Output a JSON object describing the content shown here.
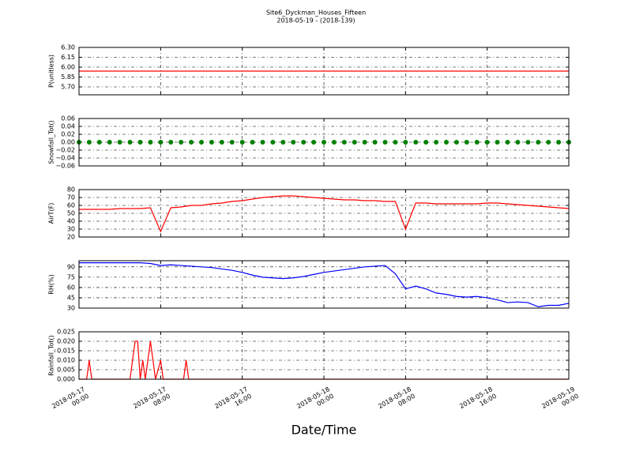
{
  "figure": {
    "title": "Site6_Dyckman_Houses_Fifteen",
    "subtitle": "2018-05-19 - (2018-139)",
    "xlabel": "Date/Time"
  },
  "chart_data": [
    {
      "type": "line",
      "ylabel": "P(unitless)",
      "color": "#ff0000",
      "x": [
        "2018-05-17 00:00",
        "2018-05-19 00:00"
      ],
      "values": [
        5.94,
        5.94
      ],
      "ylim": [
        5.58,
        6.3
      ],
      "yticks": [
        {
          "value": 5.7,
          "label": "5.70"
        },
        {
          "value": 5.85,
          "label": "5.85"
        },
        {
          "value": 6.0,
          "label": "6.00"
        },
        {
          "value": 6.15,
          "label": "6.15"
        },
        {
          "value": 6.3,
          "label": "6.30"
        }
      ],
      "grid": true
    },
    {
      "type": "scatter",
      "ylabel": "Snowfall_Tot()",
      "color": "#008000",
      "x": [
        "2018-05-17 00:00",
        "2018-05-17 01:00",
        "2018-05-17 02:00",
        "2018-05-17 03:00",
        "2018-05-17 04:00",
        "2018-05-17 05:00",
        "2018-05-17 06:00",
        "2018-05-17 07:00",
        "2018-05-17 08:00",
        "2018-05-17 09:00",
        "2018-05-17 10:00",
        "2018-05-17 11:00",
        "2018-05-17 12:00",
        "2018-05-17 13:00",
        "2018-05-17 14:00",
        "2018-05-17 15:00",
        "2018-05-17 16:00",
        "2018-05-17 17:00",
        "2018-05-17 18:00",
        "2018-05-17 19:00",
        "2018-05-17 20:00",
        "2018-05-17 21:00",
        "2018-05-17 22:00",
        "2018-05-17 23:00",
        "2018-05-18 00:00",
        "2018-05-18 01:00",
        "2018-05-18 02:00",
        "2018-05-18 03:00",
        "2018-05-18 04:00",
        "2018-05-18 05:00",
        "2018-05-18 06:00",
        "2018-05-18 07:00",
        "2018-05-18 08:00",
        "2018-05-18 09:00",
        "2018-05-18 10:00",
        "2018-05-18 11:00",
        "2018-05-18 12:00",
        "2018-05-18 13:00",
        "2018-05-18 14:00",
        "2018-05-18 15:00",
        "2018-05-18 16:00",
        "2018-05-18 17:00",
        "2018-05-18 18:00",
        "2018-05-18 19:00",
        "2018-05-18 20:00",
        "2018-05-18 21:00",
        "2018-05-18 22:00",
        "2018-05-18 23:00",
        "2018-05-19 00:00"
      ],
      "values": [
        0,
        0,
        0,
        0,
        0,
        0,
        0,
        0,
        0,
        0,
        0,
        0,
        0,
        0,
        0,
        0,
        0,
        0,
        0,
        0,
        0,
        0,
        0,
        0,
        0,
        0,
        0,
        0,
        0,
        0,
        0,
        0,
        0,
        0,
        0,
        0,
        0,
        0,
        0,
        0,
        0,
        0,
        0,
        0,
        0,
        0,
        0,
        0,
        0
      ],
      "ylim": [
        -0.06,
        0.06
      ],
      "yticks": [
        {
          "value": -0.06,
          "label": "−0.06"
        },
        {
          "value": -0.04,
          "label": "−0.04"
        },
        {
          "value": -0.02,
          "label": "−0.02"
        },
        {
          "value": 0,
          "label": "0.00"
        },
        {
          "value": 0.02,
          "label": "0.02"
        },
        {
          "value": 0.04,
          "label": "0.04"
        },
        {
          "value": 0.06,
          "label": "0.06"
        }
      ],
      "grid": true
    },
    {
      "type": "line",
      "ylabel": "AirT(F)",
      "color": "#ff0000",
      "x": [
        "2018-05-17 00:00",
        "2018-05-17 01:00",
        "2018-05-17 02:00",
        "2018-05-17 03:00",
        "2018-05-17 04:00",
        "2018-05-17 05:00",
        "2018-05-17 06:00",
        "2018-05-17 07:00",
        "2018-05-17 08:00",
        "2018-05-17 09:00",
        "2018-05-17 10:00",
        "2018-05-17 11:00",
        "2018-05-17 12:00",
        "2018-05-17 13:00",
        "2018-05-17 14:00",
        "2018-05-17 15:00",
        "2018-05-17 16:00",
        "2018-05-17 17:00",
        "2018-05-17 18:00",
        "2018-05-17 19:00",
        "2018-05-17 20:00",
        "2018-05-17 21:00",
        "2018-05-17 22:00",
        "2018-05-17 23:00",
        "2018-05-18 00:00",
        "2018-05-18 01:00",
        "2018-05-18 02:00",
        "2018-05-18 03:00",
        "2018-05-18 04:00",
        "2018-05-18 05:00",
        "2018-05-18 06:00",
        "2018-05-18 07:00",
        "2018-05-18 08:00",
        "2018-05-18 09:00",
        "2018-05-18 10:00",
        "2018-05-18 11:00",
        "2018-05-18 12:00",
        "2018-05-18 13:00",
        "2018-05-18 14:00",
        "2018-05-18 15:00",
        "2018-05-18 16:00",
        "2018-05-18 17:00",
        "2018-05-18 18:00",
        "2018-05-18 19:00",
        "2018-05-18 20:00",
        "2018-05-18 21:00",
        "2018-05-18 22:00",
        "2018-05-18 23:00",
        "2018-05-19 00:00"
      ],
      "values": [
        55,
        55,
        55,
        55,
        56,
        56,
        56,
        57,
        27,
        57,
        58,
        60,
        60,
        62,
        63,
        65,
        66,
        68,
        70,
        71,
        72,
        72,
        71,
        70,
        69,
        68,
        67,
        67,
        66,
        66,
        65,
        65,
        30,
        63,
        63,
        62,
        62,
        62,
        62,
        62,
        63,
        63,
        62,
        61,
        60,
        59,
        58,
        57,
        56
      ],
      "ylim": [
        20,
        80
      ],
      "yticks": [
        20,
        30,
        40,
        50,
        60,
        70,
        80
      ],
      "grid": true
    },
    {
      "type": "line",
      "ylabel": "RH(%)",
      "color": "#0000ff",
      "x": [
        "2018-05-17 00:00",
        "2018-05-17 01:00",
        "2018-05-17 02:00",
        "2018-05-17 03:00",
        "2018-05-17 04:00",
        "2018-05-17 05:00",
        "2018-05-17 06:00",
        "2018-05-17 07:00",
        "2018-05-17 08:00",
        "2018-05-17 09:00",
        "2018-05-17 10:00",
        "2018-05-17 11:00",
        "2018-05-17 12:00",
        "2018-05-17 13:00",
        "2018-05-17 14:00",
        "2018-05-17 15:00",
        "2018-05-17 16:00",
        "2018-05-17 17:00",
        "2018-05-17 18:00",
        "2018-05-17 19:00",
        "2018-05-17 20:00",
        "2018-05-17 21:00",
        "2018-05-17 22:00",
        "2018-05-17 23:00",
        "2018-05-18 00:00",
        "2018-05-18 01:00",
        "2018-05-18 02:00",
        "2018-05-18 03:00",
        "2018-05-18 04:00",
        "2018-05-18 05:00",
        "2018-05-18 06:00",
        "2018-05-18 07:00",
        "2018-05-18 08:00",
        "2018-05-18 09:00",
        "2018-05-18 10:00",
        "2018-05-18 11:00",
        "2018-05-18 12:00",
        "2018-05-18 13:00",
        "2018-05-18 14:00",
        "2018-05-18 15:00",
        "2018-05-18 16:00",
        "2018-05-18 17:00",
        "2018-05-18 18:00",
        "2018-05-18 19:00",
        "2018-05-18 20:00",
        "2018-05-18 21:00",
        "2018-05-18 22:00",
        "2018-05-18 23:00",
        "2018-05-19 00:00"
      ],
      "values": [
        96,
        96,
        96,
        96,
        96,
        96,
        96,
        95,
        92,
        93,
        92,
        91,
        90,
        89,
        87,
        85,
        82,
        78,
        75,
        74,
        73,
        74,
        76,
        79,
        82,
        84,
        86,
        88,
        90,
        91,
        92,
        80,
        58,
        62,
        58,
        52,
        50,
        47,
        46,
        47,
        45,
        42,
        38,
        39,
        38,
        32,
        34,
        34,
        37
      ],
      "ylim": [
        30,
        99
      ],
      "yticks": [
        30,
        45,
        60,
        75,
        90
      ],
      "grid": true
    },
    {
      "type": "line",
      "ylabel": "Rainfall_Tot()",
      "color": "#ff0000",
      "x": [
        "2018-05-17 00:00",
        "2018-05-17 00:45",
        "2018-05-17 01:00",
        "2018-05-17 01:15",
        "2018-05-17 05:00",
        "2018-05-17 05:30",
        "2018-05-17 05:45",
        "2018-05-17 06:00",
        "2018-05-17 06:15",
        "2018-05-17 06:30",
        "2018-05-17 07:00",
        "2018-05-17 07:30",
        "2018-05-17 08:00",
        "2018-05-17 08:15",
        "2018-05-17 10:15",
        "2018-05-17 10:30",
        "2018-05-17 10:45",
        "2018-05-19 00:00"
      ],
      "values": [
        0,
        0,
        0.01,
        0,
        0,
        0.02,
        0.02,
        0,
        0.01,
        0,
        0.02,
        0,
        0.01,
        0,
        0,
        0.01,
        0,
        0
      ],
      "xlim": [
        "2018-05-17 00:00",
        "2018-05-19 00:00"
      ],
      "xticks": [
        {
          "value": "2018-05-17 00:00",
          "label": "2018-05-17\n00:00"
        },
        {
          "value": "2018-05-17 08:00",
          "label": "2018-05-17\n08:00"
        },
        {
          "value": "2018-05-17 16:00",
          "label": "2018-05-17\n16:00"
        },
        {
          "value": "2018-05-18 00:00",
          "label": "2018-05-18\n00:00"
        },
        {
          "value": "2018-05-18 08:00",
          "label": "2018-05-18\n08:00"
        },
        {
          "value": "2018-05-18 16:00",
          "label": "2018-05-18\n16:00"
        },
        {
          "value": "2018-05-19 00:00",
          "label": "2018-05-19\n00:00"
        }
      ],
      "ylim": [
        0,
        0.025
      ],
      "yticks": [
        {
          "value": 0,
          "label": "0.000"
        },
        {
          "value": 0.005,
          "label": "0.005"
        },
        {
          "value": 0.01,
          "label": "0.010"
        },
        {
          "value": 0.015,
          "label": "0.015"
        },
        {
          "value": 0.02,
          "label": "0.020"
        },
        {
          "value": 0.025,
          "label": "0.025"
        }
      ],
      "grid": true
    }
  ]
}
